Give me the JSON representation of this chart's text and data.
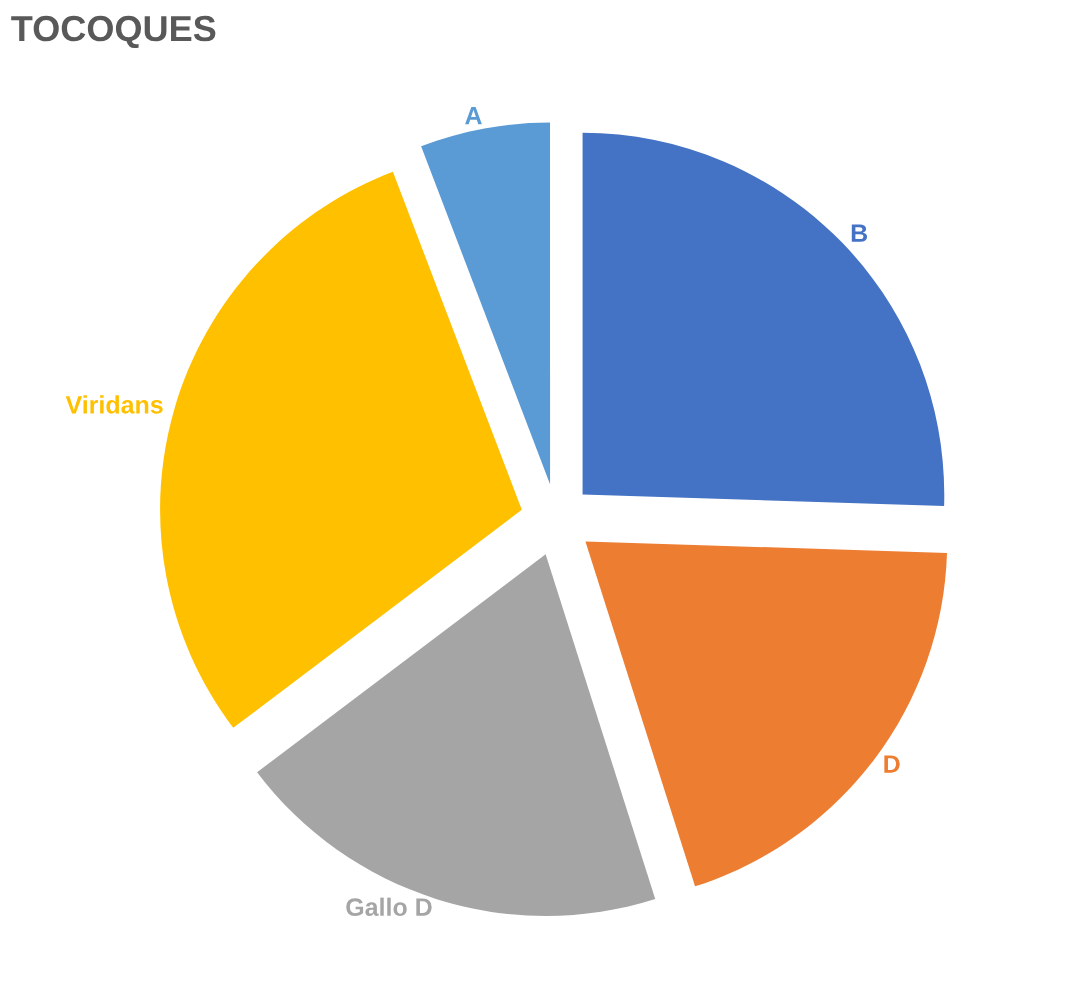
{
  "chart_data": {
    "type": "pie",
    "title": "TOCOQUES",
    "categories": [
      "B",
      "D",
      "Gallo D",
      "Viridans",
      "A"
    ],
    "values": [
      25.5,
      19.6,
      19.6,
      29.5,
      5.8
    ],
    "colors": [
      "#4472c4",
      "#ed7d31",
      "#a5a5a5",
      "#ffc000",
      "#5b9bd5"
    ],
    "legend": false
  }
}
